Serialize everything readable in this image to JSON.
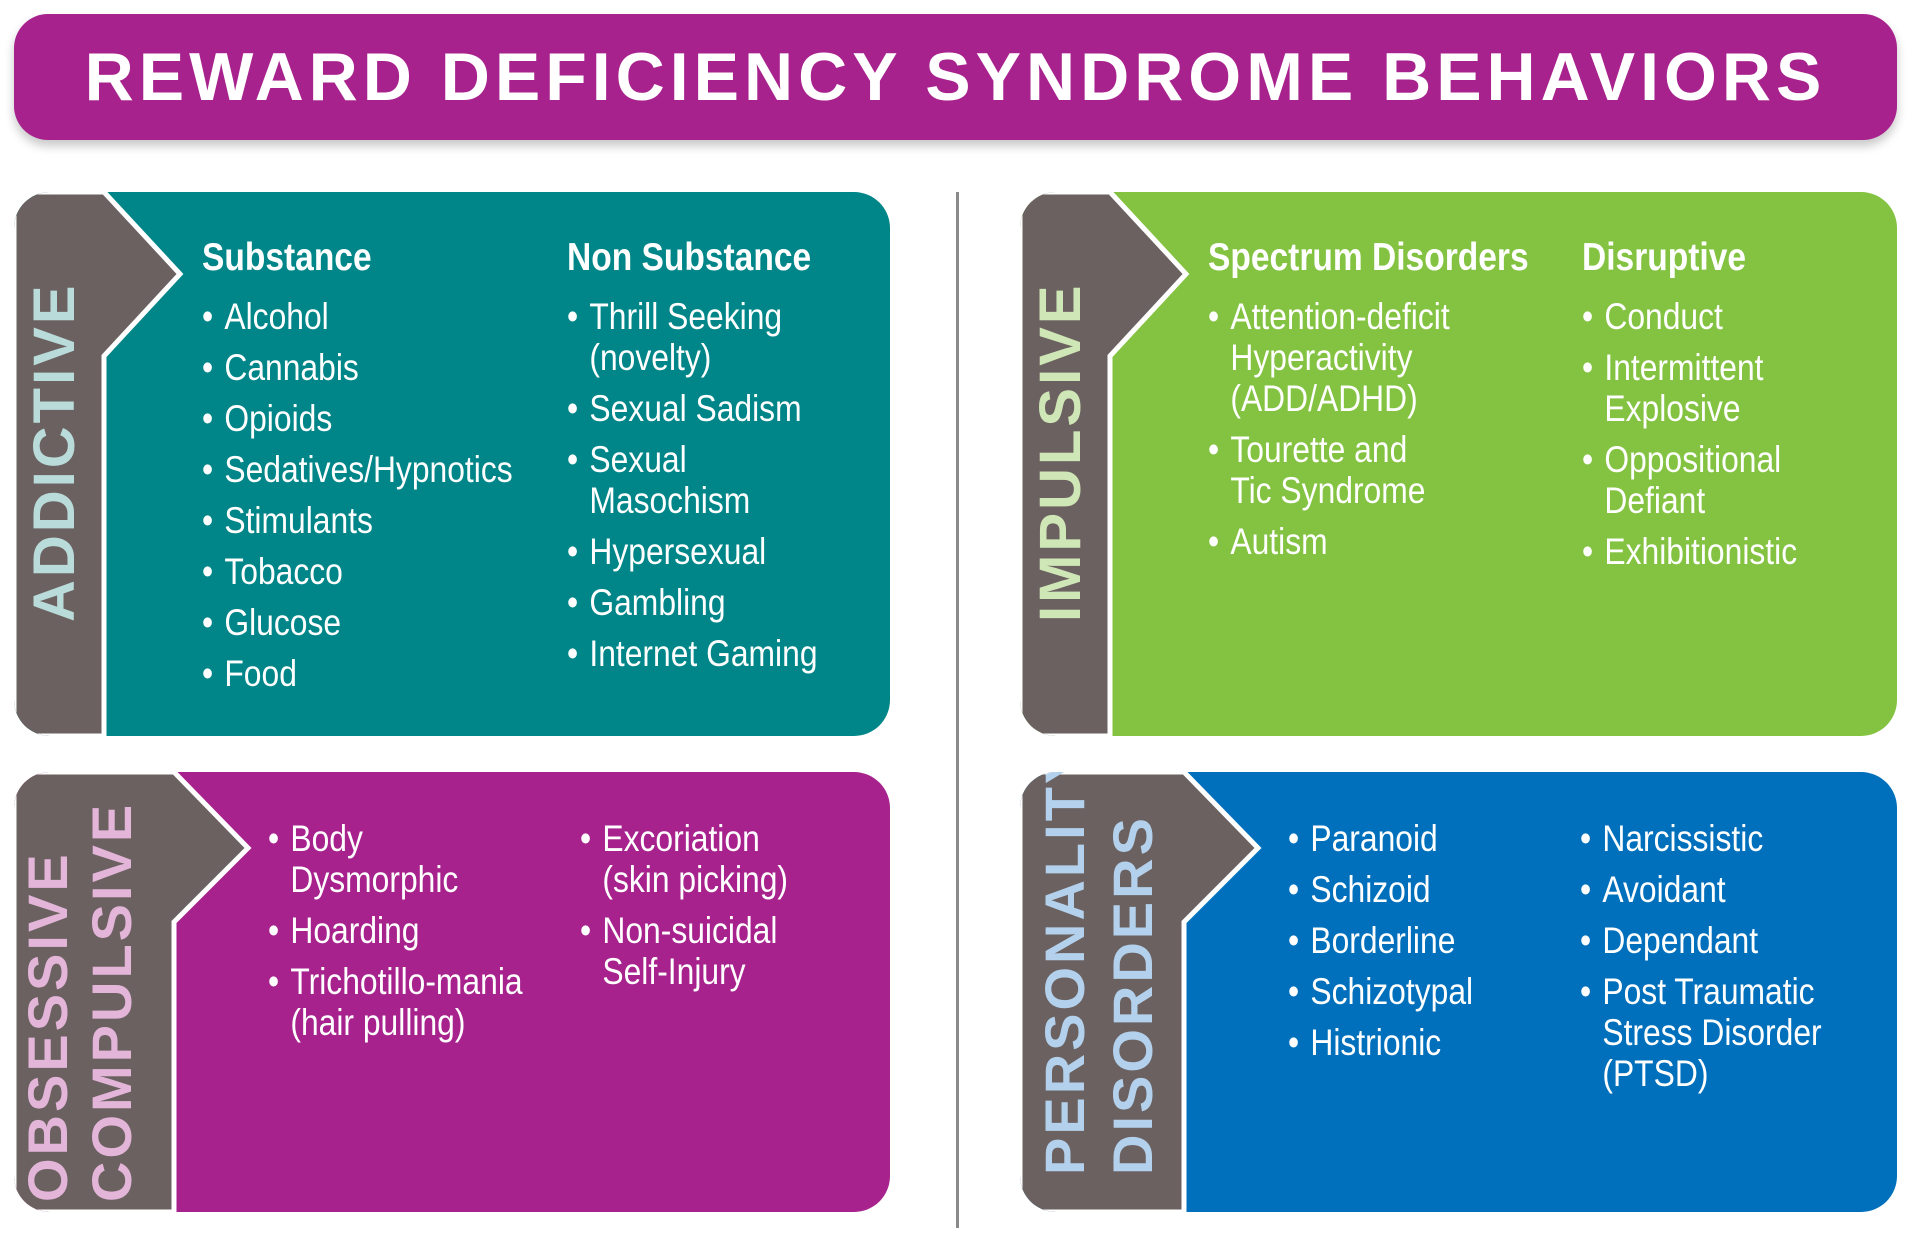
{
  "title": "REWARD DEFICIENCY SYNDROME BEHAVIORS",
  "colors": {
    "title": "#a7228d",
    "tab": "#6b6160",
    "addictive": "#008688",
    "impulsive": "#83c341",
    "obsessive": "#a7228d",
    "personality": "#0070bc"
  },
  "panels": {
    "addictive": {
      "label_lines": [
        "ADDICTIVE"
      ],
      "label_color": "#b9dcdb",
      "columns": [
        {
          "heading": "Substance",
          "items": [
            "Alcohol",
            "Cannabis",
            "Opioids",
            "Sedatives/Hypnotics",
            "Stimulants",
            "Tobacco",
            "Glucose",
            "Food"
          ]
        },
        {
          "heading": "Non Substance",
          "items": [
            "Thrill Seeking\n(novelty)",
            "Sexual Sadism",
            "Sexual Masochism",
            "Hypersexual",
            "Gambling",
            "Internet Gaming"
          ]
        }
      ]
    },
    "impulsive": {
      "label_lines": [
        "IMPULSIVE"
      ],
      "label_color": "#cfe7b6",
      "columns": [
        {
          "heading": "Spectrum Disorders",
          "items": [
            "Attention-deficit\nHyperactivity\n(ADD/ADHD)",
            "Tourette and\nTic Syndrome",
            "Autism"
          ]
        },
        {
          "heading": "Disruptive",
          "items": [
            "Conduct",
            "Intermittent\nExplosive",
            "Oppositional\nDefiant",
            "Exhibitionistic"
          ]
        }
      ]
    },
    "obsessive": {
      "label_lines": [
        "OBSESSIVE",
        "COMPULSIVE"
      ],
      "label_color": "#e3b5d9",
      "columns": [
        {
          "heading": "",
          "items": [
            "Body\nDysmorphic",
            "Hoarding",
            "Trichotillo-mania\n(hair pulling)"
          ]
        },
        {
          "heading": "",
          "items": [
            "Excoriation\n(skin picking)",
            "Non-suicidal\nSelf-Injury"
          ]
        }
      ]
    },
    "personality": {
      "label_lines": [
        "PERSONALITY",
        "DISORDERS"
      ],
      "label_color": "#b3d1ec",
      "columns": [
        {
          "heading": "",
          "items": [
            "Paranoid",
            "Schizoid",
            "Borderline",
            "Schizotypal",
            "Histrionic"
          ]
        },
        {
          "heading": "",
          "items": [
            "Narcissistic",
            "Avoidant",
            "Dependant",
            "Post Traumatic\nStress Disorder\n(PTSD)"
          ]
        }
      ]
    }
  }
}
